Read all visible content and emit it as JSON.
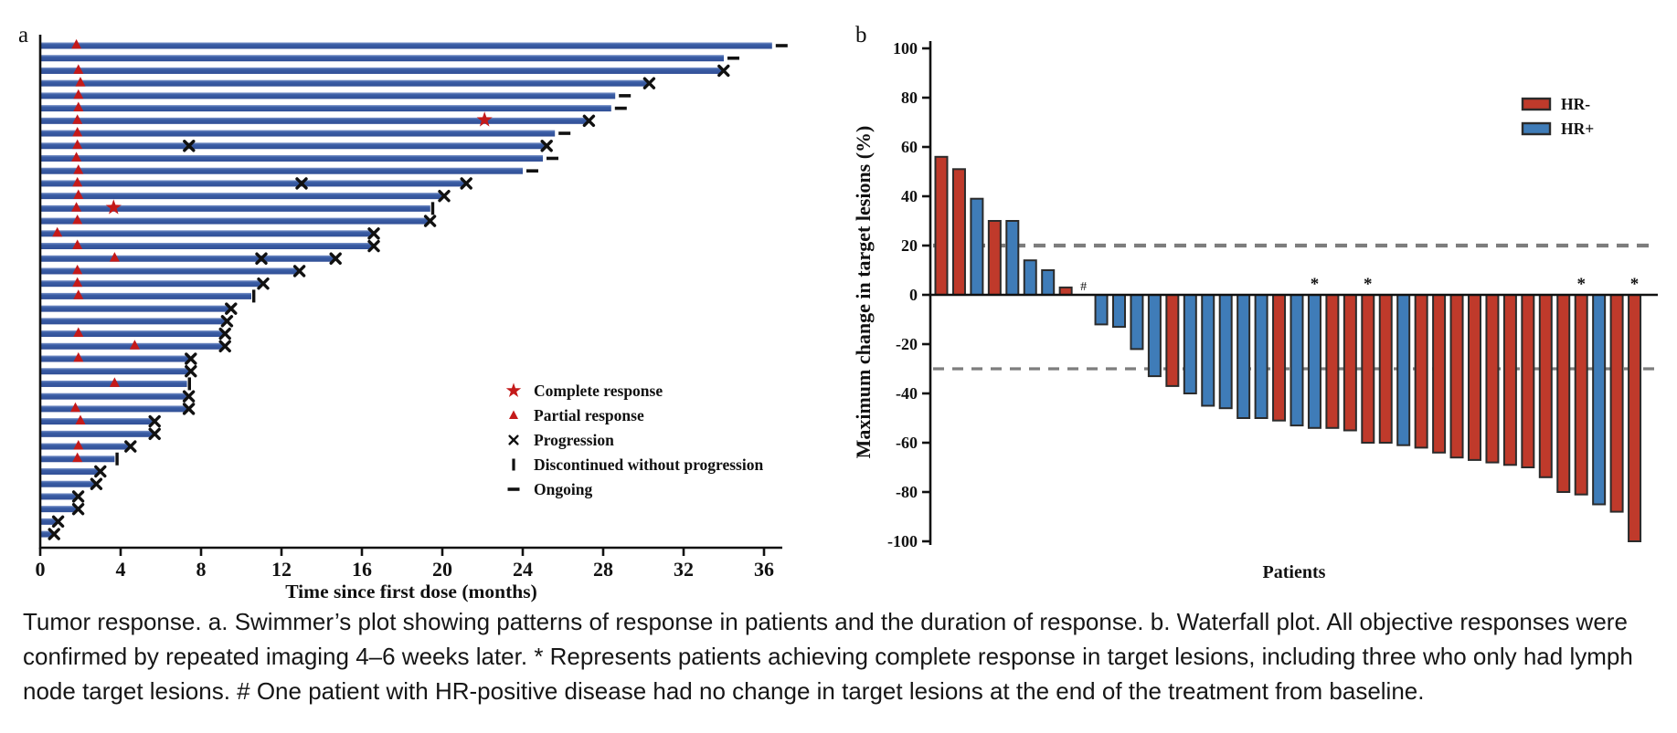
{
  "figure": {
    "panel_a_label": "a",
    "panel_b_label": "b"
  },
  "colors": {
    "swimmer_bar": "#3a5da5",
    "swimmer_bar_light": "#7d95ca",
    "swimmer_bar_dark": "#314f96",
    "hr_neg_red": "#bf3a2b",
    "hr_pos_blue": "#3f7cb8",
    "marker_red": "#c41a1a",
    "axis_black": "#111111",
    "bar_stroke": "#2b2b2b",
    "dashed_gray": "#7d7d7d"
  },
  "chart_data": [
    {
      "type": "swimmer",
      "xlabel": "Time since first dose (months)",
      "xlim": [
        0,
        36
      ],
      "xticks": [
        0,
        4,
        8,
        12,
        16,
        20,
        24,
        28,
        32,
        36
      ],
      "legend": [
        {
          "marker": "star",
          "label": "Complete response"
        },
        {
          "marker": "triangle",
          "label": "Partial response"
        },
        {
          "marker": "x",
          "label": "Progression"
        },
        {
          "marker": "bar",
          "label": "Discontinued without progression"
        },
        {
          "marker": "dash",
          "label": "Ongoing"
        }
      ],
      "patients": [
        {
          "duration": 36.4,
          "end": "ongoing",
          "events": [
            {
              "type": "triangle",
              "month": 1.8
            }
          ]
        },
        {
          "duration": 34.0,
          "end": "ongoing",
          "events": []
        },
        {
          "duration": 33.9,
          "end": "progression",
          "events": [
            {
              "type": "triangle",
              "month": 1.9
            }
          ]
        },
        {
          "duration": 30.2,
          "end": "progression",
          "events": [
            {
              "type": "triangle",
              "month": 2.0
            }
          ]
        },
        {
          "duration": 28.6,
          "end": "ongoing",
          "events": [
            {
              "type": "triangle",
              "month": 1.9
            }
          ]
        },
        {
          "duration": 28.4,
          "end": "ongoing",
          "events": [
            {
              "type": "triangle",
              "month": 1.9
            }
          ]
        },
        {
          "duration": 27.2,
          "end": "progression",
          "events": [
            {
              "type": "triangle",
              "month": 1.85
            },
            {
              "type": "star",
              "month": 22.1
            }
          ]
        },
        {
          "duration": 25.6,
          "end": "ongoing",
          "events": [
            {
              "type": "triangle",
              "month": 1.85
            }
          ]
        },
        {
          "duration": 25.1,
          "end": "progression",
          "events": [
            {
              "type": "triangle",
              "month": 1.85
            },
            {
              "type": "x",
              "month": 7.4
            }
          ]
        },
        {
          "duration": 25.0,
          "end": "ongoing",
          "events": [
            {
              "type": "triangle",
              "month": 1.8
            }
          ]
        },
        {
          "duration": 24.0,
          "end": "ongoing",
          "events": [
            {
              "type": "triangle",
              "month": 1.9
            }
          ]
        },
        {
          "duration": 21.1,
          "end": "progression",
          "events": [
            {
              "type": "triangle",
              "month": 1.85
            },
            {
              "type": "x",
              "month": 13.0
            }
          ]
        },
        {
          "duration": 20.0,
          "end": "progression",
          "events": [
            {
              "type": "triangle",
              "month": 1.9
            }
          ]
        },
        {
          "duration": 19.4,
          "end": "discontinued",
          "events": [
            {
              "type": "triangle",
              "month": 1.8
            },
            {
              "type": "star",
              "month": 3.65
            }
          ]
        },
        {
          "duration": 19.3,
          "end": "progression",
          "events": [
            {
              "type": "triangle",
              "month": 1.85
            }
          ]
        },
        {
          "duration": 16.5,
          "end": "progression",
          "events": [
            {
              "type": "triangle",
              "month": 0.85
            }
          ]
        },
        {
          "duration": 16.5,
          "end": "progression",
          "events": [
            {
              "type": "triangle",
              "month": 1.85
            }
          ]
        },
        {
          "duration": 14.6,
          "end": "progression",
          "events": [
            {
              "type": "triangle",
              "month": 3.7
            },
            {
              "type": "x",
              "month": 11.0
            }
          ]
        },
        {
          "duration": 12.8,
          "end": "progression",
          "events": [
            {
              "type": "triangle",
              "month": 1.85
            }
          ]
        },
        {
          "duration": 11.0,
          "end": "progression",
          "events": [
            {
              "type": "triangle",
              "month": 1.85
            }
          ]
        },
        {
          "duration": 10.5,
          "end": "discontinued",
          "events": [
            {
              "type": "triangle",
              "month": 1.9
            }
          ]
        },
        {
          "duration": 9.4,
          "end": "progression",
          "events": []
        },
        {
          "duration": 9.2,
          "end": "progression",
          "events": []
        },
        {
          "duration": 9.1,
          "end": "progression",
          "events": [
            {
              "type": "triangle",
              "month": 1.9
            }
          ]
        },
        {
          "duration": 9.1,
          "end": "progression",
          "events": [
            {
              "type": "triangle",
              "month": 4.7
            }
          ]
        },
        {
          "duration": 7.4,
          "end": "progression",
          "events": [
            {
              "type": "triangle",
              "month": 1.9
            }
          ]
        },
        {
          "duration": 7.4,
          "end": "progression",
          "events": []
        },
        {
          "duration": 7.3,
          "end": "discontinued",
          "events": [
            {
              "type": "triangle",
              "month": 3.7
            }
          ]
        },
        {
          "duration": 7.3,
          "end": "progression",
          "events": []
        },
        {
          "duration": 7.3,
          "end": "progression",
          "events": [
            {
              "type": "triangle",
              "month": 1.75
            }
          ]
        },
        {
          "duration": 5.6,
          "end": "progression",
          "events": [
            {
              "type": "triangle",
              "month": 2.0
            }
          ]
        },
        {
          "duration": 5.6,
          "end": "progression",
          "events": []
        },
        {
          "duration": 4.4,
          "end": "progression",
          "events": [
            {
              "type": "triangle",
              "month": 1.9
            }
          ]
        },
        {
          "duration": 3.7,
          "end": "discontinued",
          "events": [
            {
              "type": "triangle",
              "month": 1.85
            }
          ]
        },
        {
          "duration": 2.9,
          "end": "progression",
          "events": []
        },
        {
          "duration": 2.7,
          "end": "progression",
          "events": []
        },
        {
          "duration": 1.8,
          "end": "progression",
          "events": []
        },
        {
          "duration": 1.8,
          "end": "progression",
          "events": []
        },
        {
          "duration": 0.8,
          "end": "progression",
          "events": []
        },
        {
          "duration": 0.6,
          "end": "progression",
          "events": []
        }
      ]
    },
    {
      "type": "bar",
      "ylabel": "Maximum change in target lesions (%)",
      "xlabel": "Patients",
      "ylim": [
        -100,
        100
      ],
      "yticks": [
        100,
        80,
        60,
        40,
        20,
        0,
        -20,
        -40,
        -60,
        -80,
        -100
      ],
      "reference_lines": [
        20,
        -30
      ],
      "legend": [
        {
          "label": "HR-",
          "group": "HR-"
        },
        {
          "label": "HR+",
          "group": "HR+"
        }
      ],
      "values": [
        {
          "value": 56,
          "group": "HR-"
        },
        {
          "value": 51,
          "group": "HR-"
        },
        {
          "value": 39,
          "group": "HR+"
        },
        {
          "value": 30,
          "group": "HR-"
        },
        {
          "value": 30,
          "group": "HR+"
        },
        {
          "value": 14,
          "group": "HR+"
        },
        {
          "value": 10,
          "group": "HR+"
        },
        {
          "value": 3,
          "group": "HR-"
        },
        {
          "value": 0,
          "group": "HR+",
          "mark": "#"
        },
        {
          "value": -12,
          "group": "HR+"
        },
        {
          "value": -13,
          "group": "HR+"
        },
        {
          "value": -22,
          "group": "HR+"
        },
        {
          "value": -33,
          "group": "HR+"
        },
        {
          "value": -37,
          "group": "HR-"
        },
        {
          "value": -40,
          "group": "HR+"
        },
        {
          "value": -45,
          "group": "HR+"
        },
        {
          "value": -46,
          "group": "HR+"
        },
        {
          "value": -50,
          "group": "HR+"
        },
        {
          "value": -50,
          "group": "HR+"
        },
        {
          "value": -51,
          "group": "HR-"
        },
        {
          "value": -53,
          "group": "HR+"
        },
        {
          "value": -54,
          "group": "HR+",
          "mark": "*"
        },
        {
          "value": -54,
          "group": "HR-"
        },
        {
          "value": -55,
          "group": "HR-"
        },
        {
          "value": -60,
          "group": "HR-",
          "mark": "*"
        },
        {
          "value": -60,
          "group": "HR-"
        },
        {
          "value": -61,
          "group": "HR+"
        },
        {
          "value": -62,
          "group": "HR-"
        },
        {
          "value": -64,
          "group": "HR-"
        },
        {
          "value": -66,
          "group": "HR-"
        },
        {
          "value": -67,
          "group": "HR-"
        },
        {
          "value": -68,
          "group": "HR-"
        },
        {
          "value": -69,
          "group": "HR-"
        },
        {
          "value": -70,
          "group": "HR-"
        },
        {
          "value": -74,
          "group": "HR-"
        },
        {
          "value": -80,
          "group": "HR-"
        },
        {
          "value": -81,
          "group": "HR-",
          "mark": "*"
        },
        {
          "value": -85,
          "group": "HR+"
        },
        {
          "value": -88,
          "group": "HR-"
        },
        {
          "value": -100,
          "group": "HR-",
          "mark": "*"
        }
      ]
    }
  ],
  "caption": {
    "lines": [
      "Tumor response. a. Swimmer’s plot showing patterns of response in patients and the duration of response. b. Waterfall plot. All objective responses were",
      "confirmed by repeated imaging 4–6 weeks later. * Represents patients achieving complete response in target lesions, including three who only had lymph",
      "node target lesions. # One patient with HR-positive disease had no change in target lesions at the end of the treatment from baseline."
    ]
  }
}
